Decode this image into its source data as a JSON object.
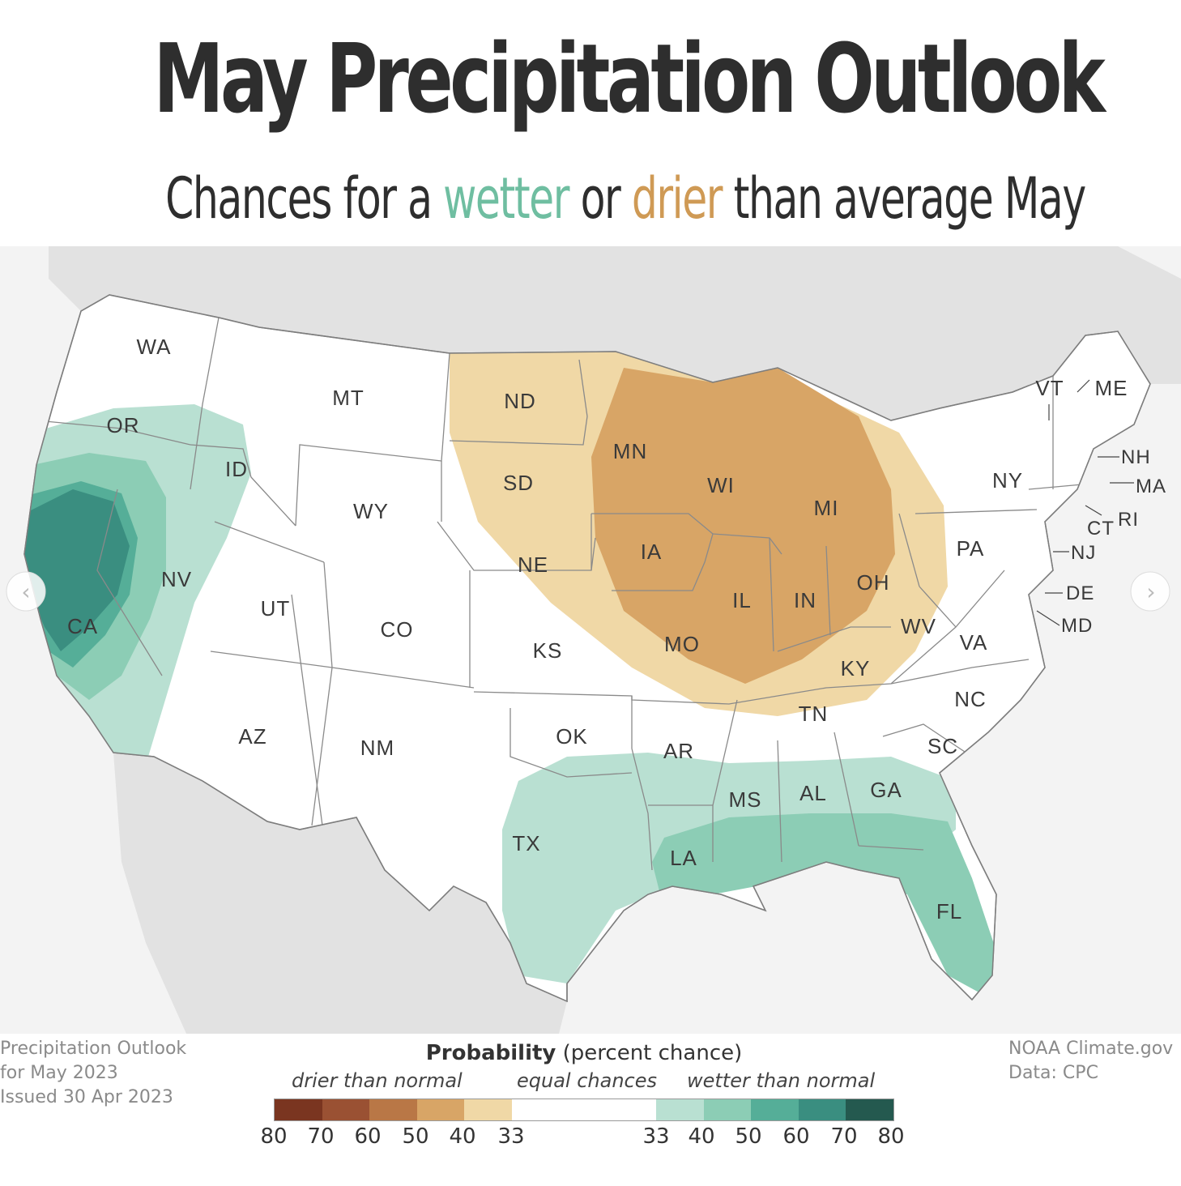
{
  "title": "May Precipitation Outlook",
  "subtitle": {
    "before": "Chances for a ",
    "wet_word": "wetter",
    "middle": " or ",
    "dry_word": "drier",
    "after": " than average May"
  },
  "colors": {
    "wet": "#6fbea1",
    "dry": "#cf9a55",
    "wet_33_40": "#b9e0d2",
    "wet_40_50": "#8ccdb5",
    "wet_50_60": "#55ae98",
    "wet_60_70": "#3a8e80",
    "wet_70_80": "#24594f",
    "dry_33_40": "#f0d8a6",
    "dry_40_50": "#d8a566",
    "dry_50_60": "#b97746",
    "dry_60_70": "#9a5133",
    "dry_70_80": "#7a3520",
    "equal": "#ffffff",
    "background_land": "#e6e6e6"
  },
  "map": {
    "states": [
      "WA",
      "OR",
      "ID",
      "MT",
      "WY",
      "ND",
      "SD",
      "NE",
      "MN",
      "IA",
      "WI",
      "MI",
      "IL",
      "IN",
      "OH",
      "PA",
      "NY",
      "VT",
      "ME",
      "NH",
      "MA",
      "RI",
      "CT",
      "NJ",
      "DE",
      "MD",
      "VA",
      "WV",
      "KY",
      "TN",
      "NC",
      "SC",
      "GA",
      "AL",
      "MS",
      "AR",
      "LA",
      "TX",
      "OK",
      "KS",
      "MO",
      "CO",
      "UT",
      "NV",
      "CA",
      "AZ",
      "NM",
      "FL"
    ],
    "nav": {
      "prev": "‹",
      "next": "›"
    }
  },
  "footer": {
    "left": [
      "Precipitation Outlook",
      "for May 2023",
      "Issued 30 Apr 2023"
    ],
    "right": [
      "NOAA Climate.gov",
      "Data: CPC"
    ]
  },
  "legend": {
    "title_bold": "Probability",
    "title_rest": " (percent chance)",
    "drier": "drier than normal",
    "equal": "equal chances",
    "wetter": "wetter than normal",
    "ticks": [
      "80",
      "70",
      "60",
      "50",
      "40",
      "33",
      "33",
      "40",
      "50",
      "60",
      "70",
      "80"
    ]
  }
}
